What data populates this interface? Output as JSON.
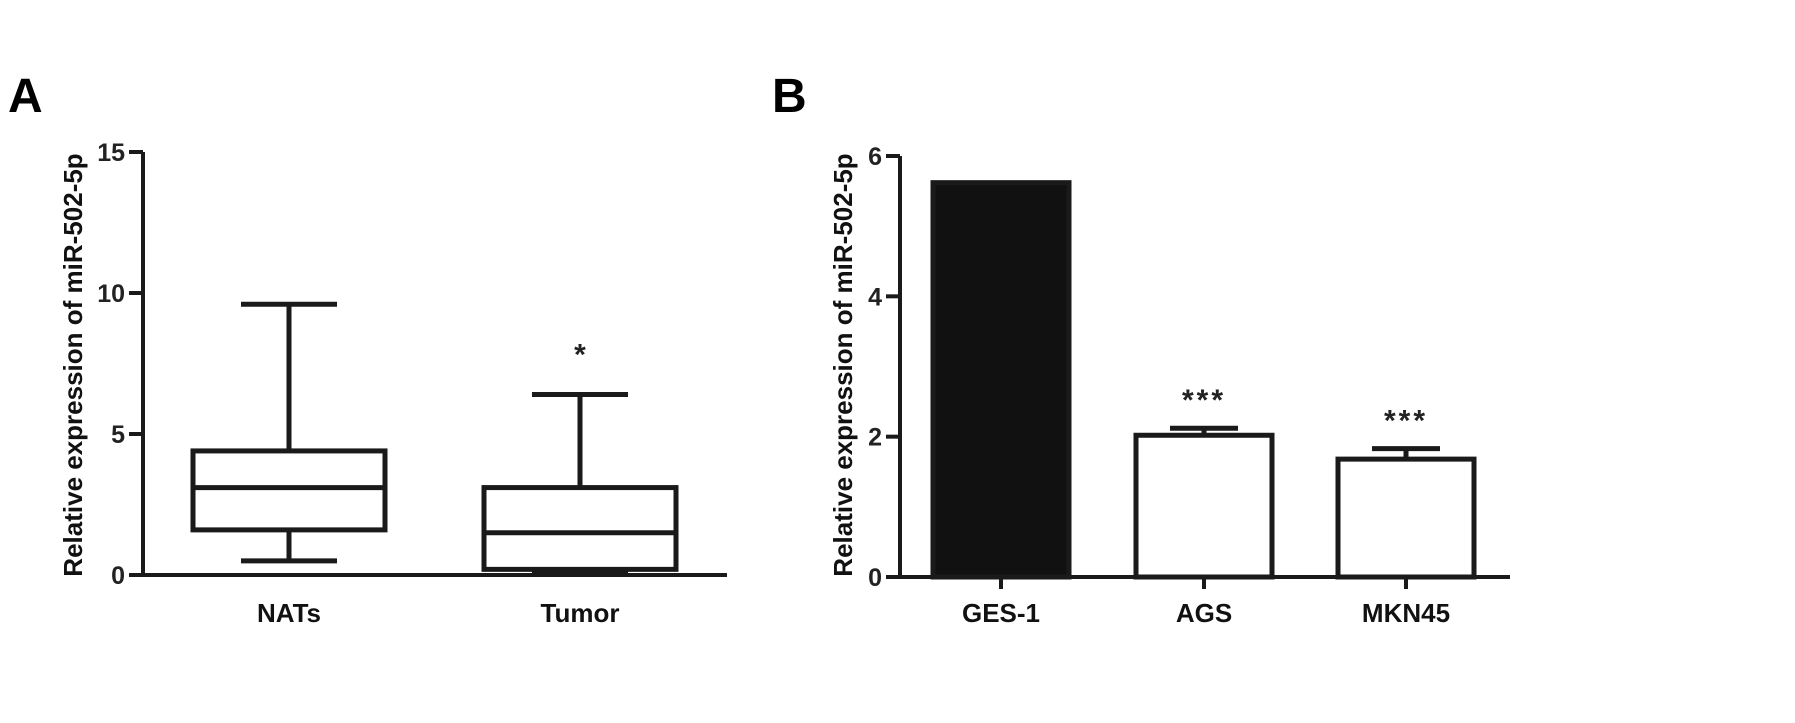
{
  "chart_data": [
    {
      "panel": "A",
      "type": "box",
      "ylabel": "Relative expression of miR-502-5p",
      "ylim": [
        0,
        15
      ],
      "yticks": [
        "0",
        "5",
        "10",
        "15"
      ],
      "categories": [
        "NATs",
        "Tumor"
      ],
      "boxes": [
        {
          "category": "NATs",
          "min": 0.5,
          "q1": 1.6,
          "median": 3.1,
          "q3": 4.4,
          "max": 9.6,
          "annotation": ""
        },
        {
          "category": "Tumor",
          "min": 0.15,
          "q1": 0.2,
          "median": 1.5,
          "q3": 3.1,
          "max": 6.4,
          "annotation": "*"
        }
      ],
      "grid": false
    },
    {
      "panel": "B",
      "type": "bar",
      "ylabel": "Relative expression of miR-502-5p",
      "ylim": [
        0,
        6
      ],
      "yticks": [
        "0",
        "2",
        "4",
        "6"
      ],
      "categories": [
        "GES-1",
        "AGS",
        "MKN45"
      ],
      "values": [
        5.62,
        2.02,
        1.68
      ],
      "errors": [
        0.0,
        0.1,
        0.15
      ],
      "fills": [
        "#111111",
        "#ffffff",
        "#ffffff"
      ],
      "annotations": [
        "",
        "***",
        "***"
      ],
      "grid": false
    }
  ]
}
